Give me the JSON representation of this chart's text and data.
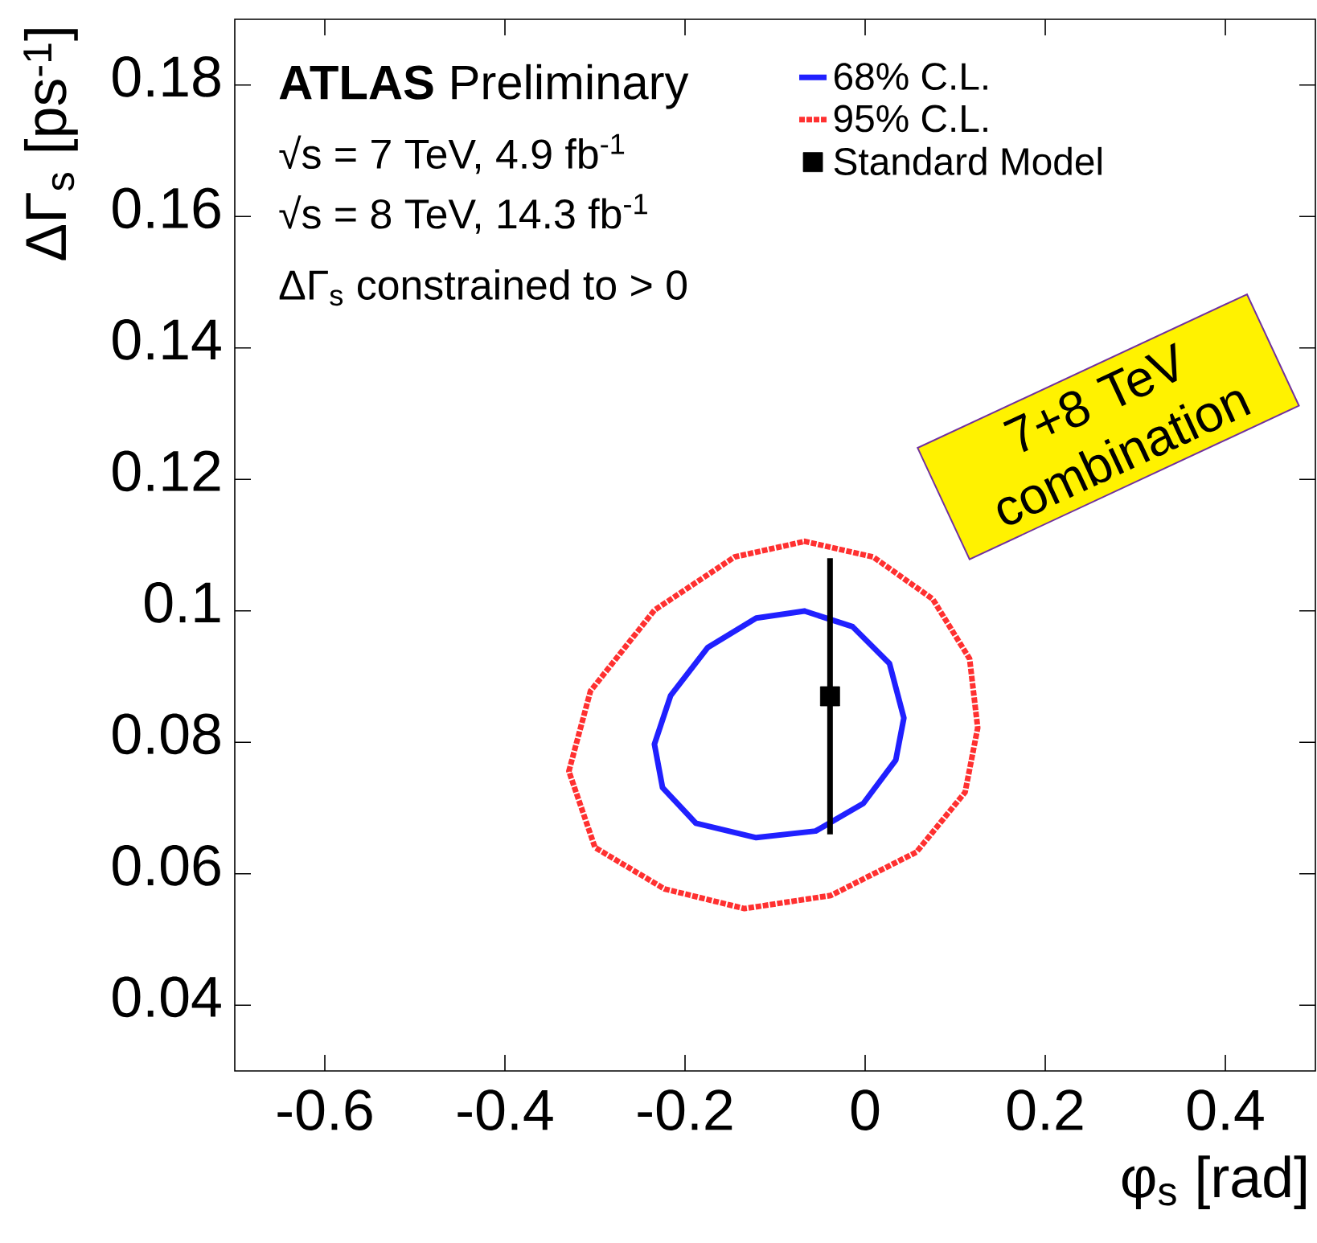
{
  "chart_data": {
    "type": "line",
    "xlabel": "φ$_{s}$ [rad]",
    "ylabel": "ΔΓ$_{s}$ [ps$^{-1}$]",
    "xlim": [
      -0.7,
      0.5
    ],
    "ylim": [
      0.03,
      0.19
    ],
    "xticks": [
      -0.6,
      -0.4,
      -0.2,
      0,
      0.2,
      0.4
    ],
    "yticks": [
      0.04,
      0.06,
      0.08,
      0.1,
      0.12,
      0.14,
      0.16,
      0.18
    ],
    "legend": "top right",
    "annotations": [
      "**ATLAS** Preliminary",
      "√s = 7 TeV, 4.9 fb$^{-1}$",
      "√s = 8 TeV, 14.3 fb$^{-1}$",
      "ΔΓ$_{s}$ constrained to > 0",
      "7+8 TeV combination"
    ],
    "series": [
      {
        "name": "68% C.L.",
        "color": "#2020ff",
        "line_style": "solid",
        "x": [
          -0.068,
          -0.014,
          0.027,
          0.043,
          0.034,
          -0.002,
          -0.055,
          -0.121,
          -0.188,
          -0.225,
          -0.234,
          -0.216,
          -0.175,
          -0.121,
          -0.066
        ],
        "values": [
          0.1,
          0.0976,
          0.092,
          0.0837,
          0.0773,
          0.0707,
          0.0665,
          0.0655,
          0.0677,
          0.0731,
          0.0797,
          0.0871,
          0.0944,
          0.0989,
          0.1
        ]
      },
      {
        "name": "95% C.L.",
        "color": "#ff3030",
        "line_style": "dotted",
        "x": [
          -0.068,
          0.009,
          0.075,
          0.116,
          0.125,
          0.111,
          0.057,
          -0.038,
          -0.134,
          -0.223,
          -0.3,
          -0.329,
          -0.305,
          -0.234,
          -0.145,
          -0.066
        ],
        "values": [
          0.1106,
          0.1082,
          0.1018,
          0.0927,
          0.0822,
          0.0724,
          0.0633,
          0.0567,
          0.0547,
          0.0577,
          0.064,
          0.0756,
          0.0878,
          0.1001,
          0.1082,
          0.1106
        ]
      },
      {
        "name": "Standard Model",
        "type": "scatter",
        "marker": "square",
        "color": "#000000",
        "x": [
          -0.039
        ],
        "values": [
          0.087
        ],
        "errors": [
          0.021
        ]
      }
    ]
  }
}
